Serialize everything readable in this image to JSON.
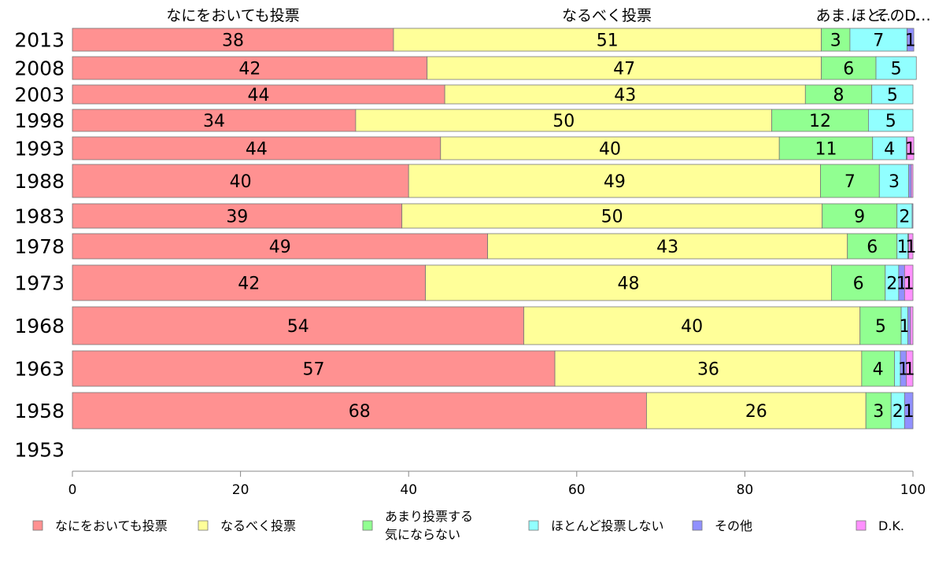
{
  "chart_data": {
    "type": "bar",
    "orientation": "horizontal",
    "stacked": true,
    "categories": [
      "2013",
      "2008",
      "2003",
      "1998",
      "1993",
      "1988",
      "1983",
      "1978",
      "1973",
      "1968",
      "1963",
      "1958",
      "1953"
    ],
    "xlim": [
      0,
      100
    ],
    "x_ticks": [
      0,
      20,
      40,
      60,
      80,
      100
    ],
    "grid": false,
    "legend_position": "bottom",
    "header_labels": [
      "なにをおいても投票",
      "なるべく投票",
      "あま…",
      "ほと…",
      "その…",
      "D…"
    ],
    "series": [
      {
        "name": "なにをおいても投票",
        "color": "#ff9191",
        "values": [
          38.2,
          42.2,
          44.3,
          33.7,
          43.8,
          40.0,
          39.2,
          49.4,
          42.0,
          53.7,
          57.4,
          68.3,
          null
        ],
        "labels": [
          "38",
          "42",
          "44",
          "34",
          "44",
          "40",
          "39",
          "49",
          "42",
          "54",
          "57",
          "68",
          ""
        ]
      },
      {
        "name": "なるべく投票",
        "color": "#ffff99",
        "values": [
          50.9,
          46.9,
          42.9,
          49.5,
          40.3,
          49.0,
          50.0,
          42.8,
          48.3,
          40.0,
          36.5,
          26.1,
          null
        ],
        "labels": [
          "51",
          "47",
          "43",
          "50",
          "40",
          "49",
          "50",
          "43",
          "48",
          "40",
          "36",
          "26",
          ""
        ]
      },
      {
        "name_lines": [
          "あまり投票する",
          "気にならない"
        ],
        "color": "#91ff91",
        "values": [
          3.4,
          6.5,
          7.9,
          11.5,
          11.1,
          7.0,
          8.9,
          5.9,
          6.4,
          4.9,
          3.9,
          3.0,
          null
        ],
        "labels": [
          "3",
          "6",
          "8",
          "12",
          "11",
          "7",
          "9",
          "6",
          "6",
          "5",
          "4",
          "3",
          ""
        ]
      },
      {
        "name": "ほとんど投票しない",
        "color": "#91ffff",
        "values": [
          6.8,
          4.8,
          4.9,
          5.3,
          4.0,
          3.5,
          1.8,
          1.3,
          1.6,
          0.8,
          0.7,
          1.6,
          null
        ],
        "labels": [
          "7",
          "5",
          "5",
          "5",
          "4",
          "3",
          "2",
          "1",
          "2",
          "1",
          "",
          "2",
          ""
        ]
      },
      {
        "name": "その他",
        "color": "#9191ff",
        "values": [
          0.8,
          0.0,
          0.0,
          0.0,
          0.1,
          0.3,
          0.1,
          0.1,
          0.7,
          0.3,
          0.7,
          1.0,
          null
        ],
        "labels": [
          "1",
          "",
          "",
          "",
          "",
          "",
          "",
          "",
          "1",
          "",
          "1",
          "1",
          ""
        ]
      },
      {
        "name": "D.K.",
        "color": "#ff91ff",
        "values": [
          0.0,
          0.0,
          0.0,
          0.0,
          0.8,
          0.2,
          0.0,
          0.5,
          1.0,
          0.3,
          0.8,
          0.0,
          null
        ],
        "labels": [
          "",
          "",
          "",
          "",
          "1",
          "",
          "",
          "1",
          "1",
          "",
          "1",
          "",
          ""
        ]
      }
    ]
  }
}
